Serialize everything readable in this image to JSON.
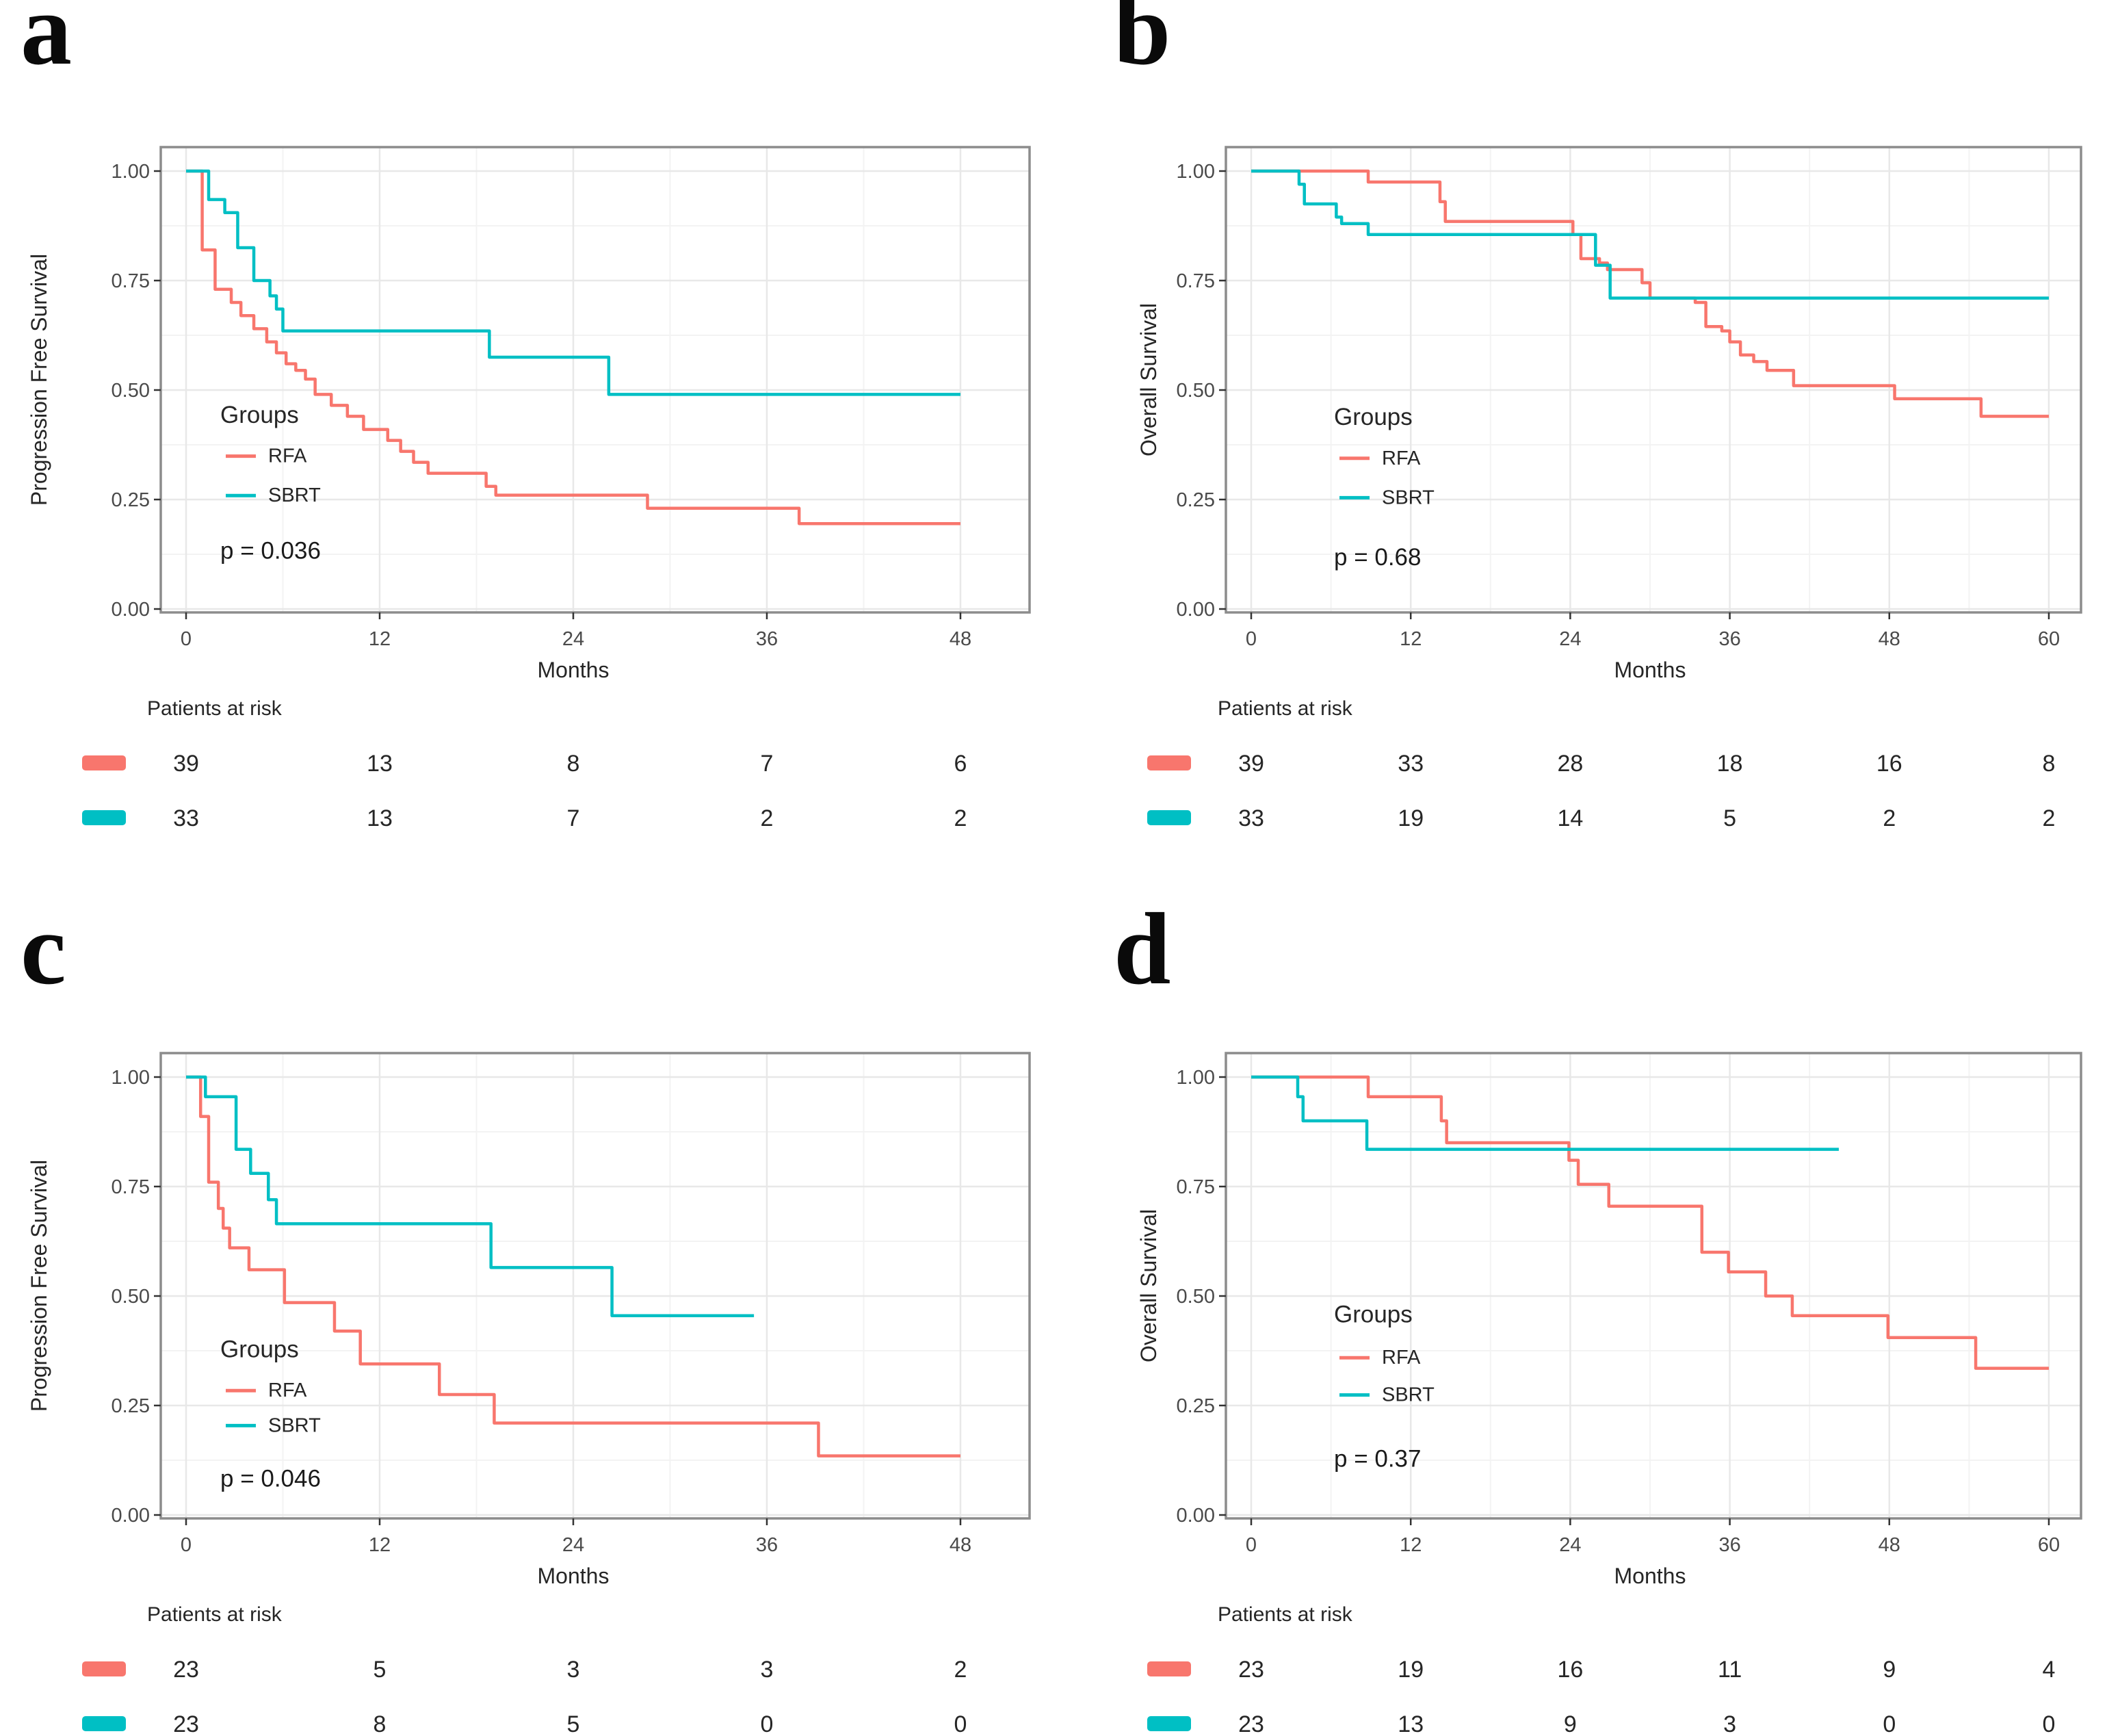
{
  "figure": {
    "background": "#ffffff",
    "rfa_color": "#F8766D",
    "sbrt_color": "#00BFC4",
    "grid_major_color": "#e8e8e8",
    "grid_minor_color": "#f3f3f3",
    "panel_border_color": "#8c8c8c",
    "text_color": "#303030"
  },
  "chart_data": [
    {
      "panel": "a",
      "letter": "a",
      "type": "line",
      "subtype": "kaplan-meier-step",
      "ylabel": "Progression Free Survival",
      "xlabel": "Months",
      "legend_title": "Groups",
      "p_value_label": "p = 0.036",
      "x_ticks": [
        0,
        12,
        24,
        36,
        48
      ],
      "y_tick_labels": [
        "0.00",
        "0.25",
        "0.50",
        "0.75",
        "1.00"
      ],
      "xlim": [
        0,
        48
      ],
      "ylim": [
        0,
        1
      ],
      "grid": true,
      "legend_position": "inside-left",
      "series": [
        {
          "name": "RFA",
          "color": "#F8766D",
          "steps": [
            [
              0,
              1.0
            ],
            [
              1.0,
              0.82
            ],
            [
              1.8,
              0.73
            ],
            [
              2.8,
              0.7
            ],
            [
              3.4,
              0.67
            ],
            [
              4.2,
              0.64
            ],
            [
              5.0,
              0.61
            ],
            [
              5.6,
              0.585
            ],
            [
              6.2,
              0.56
            ],
            [
              6.8,
              0.545
            ],
            [
              7.4,
              0.525
            ],
            [
              8.0,
              0.49
            ],
            [
              9.0,
              0.465
            ],
            [
              10.0,
              0.44
            ],
            [
              11.0,
              0.41
            ],
            [
              12.5,
              0.385
            ],
            [
              13.3,
              0.36
            ],
            [
              14.1,
              0.335
            ],
            [
              15.0,
              0.31
            ],
            [
              18.6,
              0.28
            ],
            [
              19.2,
              0.26
            ],
            [
              28.6,
              0.23
            ],
            [
              38.0,
              0.195
            ],
            [
              48,
              0.195
            ]
          ]
        },
        {
          "name": "SBRT",
          "color": "#00BFC4",
          "steps": [
            [
              0,
              1.0
            ],
            [
              1.4,
              0.935
            ],
            [
              2.4,
              0.905
            ],
            [
              3.2,
              0.825
            ],
            [
              4.2,
              0.75
            ],
            [
              5.2,
              0.715
            ],
            [
              5.6,
              0.685
            ],
            [
              6.0,
              0.635
            ],
            [
              18.8,
              0.575
            ],
            [
              26.2,
              0.49
            ],
            [
              48,
              0.49
            ]
          ]
        }
      ],
      "at_risk_label": "Patients at risk",
      "at_risk": [
        {
          "group": "RFA",
          "color": "#F8766D",
          "counts": [
            "39",
            "13",
            "8",
            "7",
            "6"
          ]
        },
        {
          "group": "SBRT",
          "color": "#00BFC4",
          "counts": [
            "33",
            "13",
            "7",
            "2",
            "2"
          ]
        }
      ]
    },
    {
      "panel": "b",
      "letter": "b",
      "type": "line",
      "subtype": "kaplan-meier-step",
      "ylabel": "Overall Survival",
      "xlabel": "Months",
      "legend_title": "Groups",
      "p_value_label": "p = 0.68",
      "x_ticks": [
        0,
        12,
        24,
        36,
        48,
        60
      ],
      "y_tick_labels": [
        "0.00",
        "0.25",
        "0.50",
        "0.75",
        "1.00"
      ],
      "xlim": [
        0,
        60
      ],
      "ylim": [
        0,
        1
      ],
      "grid": true,
      "legend_position": "inside-left",
      "series": [
        {
          "name": "RFA",
          "color": "#F8766D",
          "steps": [
            [
              0,
              1.0
            ],
            [
              8.8,
              0.975
            ],
            [
              14.2,
              0.93
            ],
            [
              14.6,
              0.885
            ],
            [
              24.2,
              0.855
            ],
            [
              24.8,
              0.8
            ],
            [
              26.2,
              0.79
            ],
            [
              26.8,
              0.775
            ],
            [
              29.4,
              0.745
            ],
            [
              30.0,
              0.71
            ],
            [
              33.4,
              0.7
            ],
            [
              34.2,
              0.645
            ],
            [
              35.4,
              0.635
            ],
            [
              36.0,
              0.61
            ],
            [
              36.8,
              0.58
            ],
            [
              37.8,
              0.565
            ],
            [
              38.8,
              0.545
            ],
            [
              40.8,
              0.51
            ],
            [
              48.4,
              0.48
            ],
            [
              54.9,
              0.44
            ],
            [
              60,
              0.44
            ]
          ]
        },
        {
          "name": "SBRT",
          "color": "#00BFC4",
          "steps": [
            [
              0,
              1.0
            ],
            [
              3.6,
              0.97
            ],
            [
              4.0,
              0.925
            ],
            [
              6.4,
              0.895
            ],
            [
              6.8,
              0.88
            ],
            [
              8.8,
              0.855
            ],
            [
              25.9,
              0.785
            ],
            [
              27.0,
              0.71
            ],
            [
              60,
              0.71
            ]
          ]
        }
      ],
      "at_risk_label": "Patients at risk",
      "at_risk": [
        {
          "group": "RFA",
          "color": "#F8766D",
          "counts": [
            "39",
            "33",
            "28",
            "18",
            "16",
            "8"
          ]
        },
        {
          "group": "SBRT",
          "color": "#00BFC4",
          "counts": [
            "33",
            "19",
            "14",
            "5",
            "2",
            "2"
          ]
        }
      ]
    },
    {
      "panel": "c",
      "letter": "c",
      "type": "line",
      "subtype": "kaplan-meier-step",
      "ylabel": "Progression Free Survival",
      "xlabel": "Months",
      "legend_title": "Groups",
      "p_value_label": "p = 0.046",
      "x_ticks": [
        0,
        12,
        24,
        36,
        48
      ],
      "y_tick_labels": [
        "0.00",
        "0.25",
        "0.50",
        "0.75",
        "1.00"
      ],
      "xlim": [
        0,
        48
      ],
      "ylim": [
        0,
        1
      ],
      "grid": true,
      "legend_position": "inside-left",
      "series": [
        {
          "name": "RFA",
          "color": "#F8766D",
          "steps": [
            [
              0,
              1.0
            ],
            [
              0.9,
              0.91
            ],
            [
              1.4,
              0.76
            ],
            [
              2.0,
              0.7
            ],
            [
              2.3,
              0.655
            ],
            [
              2.7,
              0.61
            ],
            [
              3.9,
              0.56
            ],
            [
              6.1,
              0.485
            ],
            [
              9.2,
              0.42
            ],
            [
              10.8,
              0.345
            ],
            [
              15.7,
              0.275
            ],
            [
              19.1,
              0.21
            ],
            [
              39.2,
              0.135
            ],
            [
              48,
              0.135
            ]
          ]
        },
        {
          "name": "SBRT",
          "color": "#00BFC4",
          "steps": [
            [
              0,
              1.0
            ],
            [
              1.2,
              0.955
            ],
            [
              3.1,
              0.835
            ],
            [
              4.0,
              0.78
            ],
            [
              5.1,
              0.72
            ],
            [
              5.6,
              0.665
            ],
            [
              18.9,
              0.565
            ],
            [
              26.4,
              0.455
            ],
            [
              35.2,
              0.455
            ]
          ]
        }
      ],
      "at_risk_label": "Patients at risk",
      "at_risk": [
        {
          "group": "RFA",
          "color": "#F8766D",
          "counts": [
            "23",
            "5",
            "3",
            "3",
            "2"
          ]
        },
        {
          "group": "SBRT",
          "color": "#00BFC4",
          "counts": [
            "23",
            "8",
            "5",
            "0",
            "0"
          ]
        }
      ]
    },
    {
      "panel": "d",
      "letter": "d",
      "type": "line",
      "subtype": "kaplan-meier-step",
      "ylabel": "Overall Survival",
      "xlabel": "Months",
      "legend_title": "Groups",
      "p_value_label": "p = 0.37",
      "x_ticks": [
        0,
        12,
        24,
        36,
        48,
        60
      ],
      "y_tick_labels": [
        "0.00",
        "0.25",
        "0.50",
        "0.75",
        "1.00"
      ],
      "xlim": [
        0,
        60
      ],
      "ylim": [
        0,
        1
      ],
      "grid": true,
      "legend_position": "inside-left",
      "series": [
        {
          "name": "RFA",
          "color": "#F8766D",
          "steps": [
            [
              0,
              1.0
            ],
            [
              8.8,
              0.955
            ],
            [
              14.3,
              0.9
            ],
            [
              14.7,
              0.85
            ],
            [
              23.9,
              0.81
            ],
            [
              24.6,
              0.755
            ],
            [
              26.9,
              0.705
            ],
            [
              33.9,
              0.6
            ],
            [
              35.9,
              0.555
            ],
            [
              38.7,
              0.5
            ],
            [
              40.7,
              0.455
            ],
            [
              47.9,
              0.405
            ],
            [
              54.5,
              0.335
            ],
            [
              60,
              0.335
            ]
          ]
        },
        {
          "name": "SBRT",
          "color": "#00BFC4",
          "steps": [
            [
              0,
              1.0
            ],
            [
              3.5,
              0.955
            ],
            [
              3.9,
              0.9
            ],
            [
              8.7,
              0.835
            ],
            [
              44.2,
              0.835
            ]
          ]
        }
      ],
      "at_risk_label": "Patients at risk",
      "at_risk": [
        {
          "group": "RFA",
          "color": "#F8766D",
          "counts": [
            "23",
            "19",
            "16",
            "11",
            "9",
            "4"
          ]
        },
        {
          "group": "SBRT",
          "color": "#00BFC4",
          "counts": [
            "23",
            "13",
            "9",
            "3",
            "0",
            "0"
          ]
        }
      ]
    }
  ]
}
